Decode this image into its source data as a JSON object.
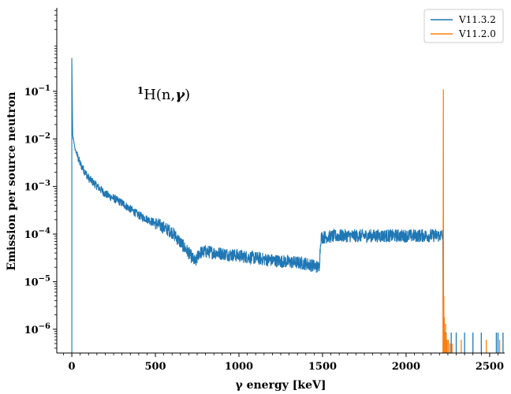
{
  "chart_data": {
    "type": "line",
    "xlabel": "γ energy [keV]",
    "ylabel": "Emission per source neutron",
    "xlim": [
      -90,
      2590
    ],
    "ylim_log10": [
      -6.5,
      0.72
    ],
    "yscale": "log",
    "x_ticks": [
      0,
      500,
      1000,
      1500,
      2000,
      2500
    ],
    "x_tick_labels": [
      "0",
      "500",
      "1000",
      "1500",
      "2000",
      "2500"
    ],
    "y_ticks_log10": [
      -1,
      -2,
      -3,
      -4,
      -5,
      -6
    ],
    "y_tick_labels": [
      {
        "base": "10",
        "exp": "−1"
      },
      {
        "base": "10",
        "exp": "−2"
      },
      {
        "base": "10",
        "exp": "−3"
      },
      {
        "base": "10",
        "exp": "−4"
      },
      {
        "base": "10",
        "exp": "−5"
      },
      {
        "base": "10",
        "exp": "−6"
      }
    ],
    "annotation": {
      "prefix_sup": "1",
      "text": "H(n,",
      "gamma": "γ",
      "suffix": ")",
      "x": 400,
      "y_log10": -1.0
    },
    "legend": {
      "placement": "top-right",
      "entries": [
        {
          "name": "V11.3.2",
          "color": "#1f77b4"
        },
        {
          "name": "V11.2.0",
          "color": "#ff7f0e"
        }
      ]
    },
    "series": [
      {
        "name": "V11.3.2",
        "color": "#1f77b4",
        "envelope": [
          [
            0,
            0.5
          ],
          [
            5,
            0.012
          ],
          [
            20,
            0.006
          ],
          [
            50,
            0.003
          ],
          [
            100,
            0.0015
          ],
          [
            200,
            0.0007
          ],
          [
            300,
            0.00045
          ],
          [
            400,
            0.00025
          ],
          [
            500,
            0.00017
          ],
          [
            600,
            0.00011
          ],
          [
            700,
            4e-05
          ],
          [
            740,
            2.5e-05
          ],
          [
            760,
            4e-05
          ],
          [
            800,
            4.3e-05
          ],
          [
            1000,
            3.5e-05
          ],
          [
            1200,
            2.8e-05
          ],
          [
            1400,
            2.4e-05
          ],
          [
            1480,
            2e-05
          ],
          [
            1490,
            8.5e-05
          ],
          [
            1600,
            9.2e-05
          ],
          [
            1800,
            9.2e-05
          ],
          [
            2000,
            9.2e-05
          ],
          [
            2220,
            9.3e-05
          ]
        ],
        "spikes": [
          [
            0,
            0.5
          ]
        ],
        "tail_bars_x": [
          2240,
          2270,
          2300,
          2350,
          2400,
          2450,
          2540,
          2550,
          2580
        ]
      },
      {
        "name": "V11.2.0",
        "color": "#ff7f0e",
        "peak": [
          2223,
          0.11
        ],
        "tail_bars": [
          [
            2226,
            5e-06
          ],
          [
            2229,
            1.8e-06
          ],
          [
            2232,
            9e-07
          ],
          [
            2236,
            1.3e-06
          ],
          [
            2240,
            8e-07
          ],
          [
            2246,
            6e-07
          ],
          [
            2253,
            6e-07
          ],
          [
            2262,
            5e-07
          ],
          [
            2275,
            5e-07
          ],
          [
            2330,
            6e-07
          ],
          [
            2480,
            6e-07
          ],
          [
            2560,
            6e-07
          ]
        ]
      }
    ]
  }
}
